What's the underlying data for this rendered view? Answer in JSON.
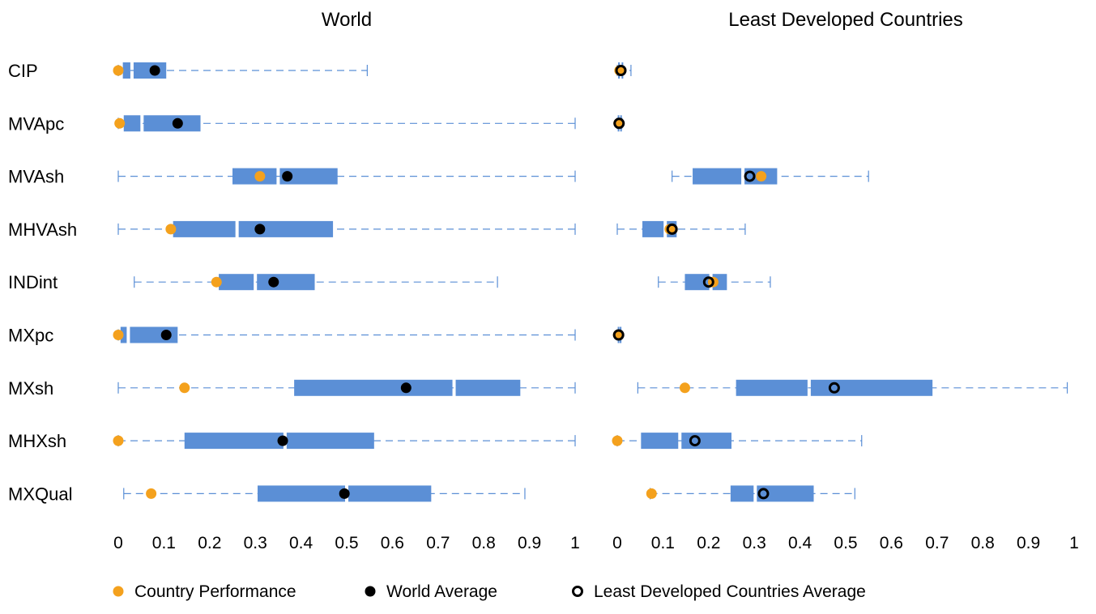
{
  "colors": {
    "box": "#5B8FD6",
    "whisker": "#5B8FD6",
    "country": "#F4A11D",
    "world_avg": "#000000",
    "ldc_avg_stroke": "#000000"
  },
  "legend": {
    "country": "Country Performance",
    "world_avg": "World Average",
    "ldc_avg": "Least Developed Countries Average"
  },
  "chart_data": {
    "type": "boxplot",
    "categories": [
      "CIP",
      "MVApc",
      "MVAsh",
      "MHVAsh",
      "INDint",
      "MXpc",
      "MXsh",
      "MHXsh",
      "MXQual"
    ],
    "xlim": [
      0,
      1
    ],
    "xticks": [
      0,
      0.1,
      0.2,
      0.3,
      0.4,
      0.5,
      0.6,
      0.7,
      0.8,
      0.9,
      1
    ],
    "xtick_labels": [
      "0",
      "0.1",
      "0.2",
      "0.3",
      "0.4",
      "0.5",
      "0.6",
      "0.7",
      "0.8",
      "0.9",
      "1"
    ],
    "legend_position": "bottom",
    "grid": false,
    "panels": [
      {
        "title": "World",
        "average_marker": "world_avg",
        "rows": [
          {
            "min": 0.0,
            "q1": 0.01,
            "median": 0.03,
            "q3": 0.105,
            "max": 0.545,
            "country": 0.0,
            "average": 0.08
          },
          {
            "min": 0.0,
            "q1": 0.012,
            "median": 0.052,
            "q3": 0.18,
            "max": 1.0,
            "country": 0.003,
            "average": 0.13
          },
          {
            "min": 0.0,
            "q1": 0.25,
            "median": 0.35,
            "q3": 0.48,
            "max": 1.0,
            "country": 0.31,
            "average": 0.37
          },
          {
            "min": 0.0,
            "q1": 0.12,
            "median": 0.26,
            "q3": 0.47,
            "max": 1.0,
            "country": 0.115,
            "average": 0.31
          },
          {
            "min": 0.035,
            "q1": 0.22,
            "median": 0.3,
            "q3": 0.43,
            "max": 0.83,
            "country": 0.215,
            "average": 0.34
          },
          {
            "min": 0.0,
            "q1": 0.005,
            "median": 0.022,
            "q3": 0.13,
            "max": 1.0,
            "country": 0.0,
            "average": 0.105
          },
          {
            "min": 0.0,
            "q1": 0.385,
            "median": 0.735,
            "q3": 0.88,
            "max": 1.0,
            "country": 0.145,
            "average": 0.63
          },
          {
            "min": 0.0,
            "q1": 0.145,
            "median": 0.365,
            "q3": 0.56,
            "max": 1.0,
            "country": 0.0,
            "average": 0.36
          },
          {
            "min": 0.012,
            "q1": 0.305,
            "median": 0.5,
            "q3": 0.685,
            "max": 0.89,
            "country": 0.072,
            "average": 0.495
          }
        ]
      },
      {
        "title": "Least Developed Countries",
        "average_marker": "ldc_avg",
        "rows": [
          {
            "min": 0.0,
            "q1": 0.002,
            "median": 0.006,
            "q3": 0.012,
            "max": 0.03,
            "country": 0.005,
            "average": 0.008
          },
          {
            "min": 0.0,
            "q1": 0.001,
            "median": 0.003,
            "q3": 0.008,
            "max": 0.01,
            "country": 0.003,
            "average": 0.004
          },
          {
            "min": 0.12,
            "q1": 0.165,
            "median": 0.275,
            "q3": 0.35,
            "max": 0.55,
            "country": 0.315,
            "average": 0.29
          },
          {
            "min": 0.0,
            "q1": 0.055,
            "median": 0.105,
            "q3": 0.13,
            "max": 0.28,
            "country": 0.115,
            "average": 0.12
          },
          {
            "min": 0.09,
            "q1": 0.148,
            "median": 0.205,
            "q3": 0.24,
            "max": 0.335,
            "country": 0.21,
            "average": 0.2
          },
          {
            "min": 0.0,
            "q1": 0.001,
            "median": 0.002,
            "q3": 0.006,
            "max": 0.008,
            "country": 0.002,
            "average": 0.003
          },
          {
            "min": 0.045,
            "q1": 0.26,
            "median": 0.42,
            "q3": 0.69,
            "max": 0.985,
            "country": 0.148,
            "average": 0.475
          },
          {
            "min": 0.0,
            "q1": 0.052,
            "median": 0.137,
            "q3": 0.25,
            "max": 0.535,
            "country": 0.0,
            "average": 0.17
          },
          {
            "min": 0.072,
            "q1": 0.248,
            "median": 0.302,
            "q3": 0.43,
            "max": 0.52,
            "country": 0.075,
            "average": 0.32
          }
        ]
      }
    ]
  }
}
